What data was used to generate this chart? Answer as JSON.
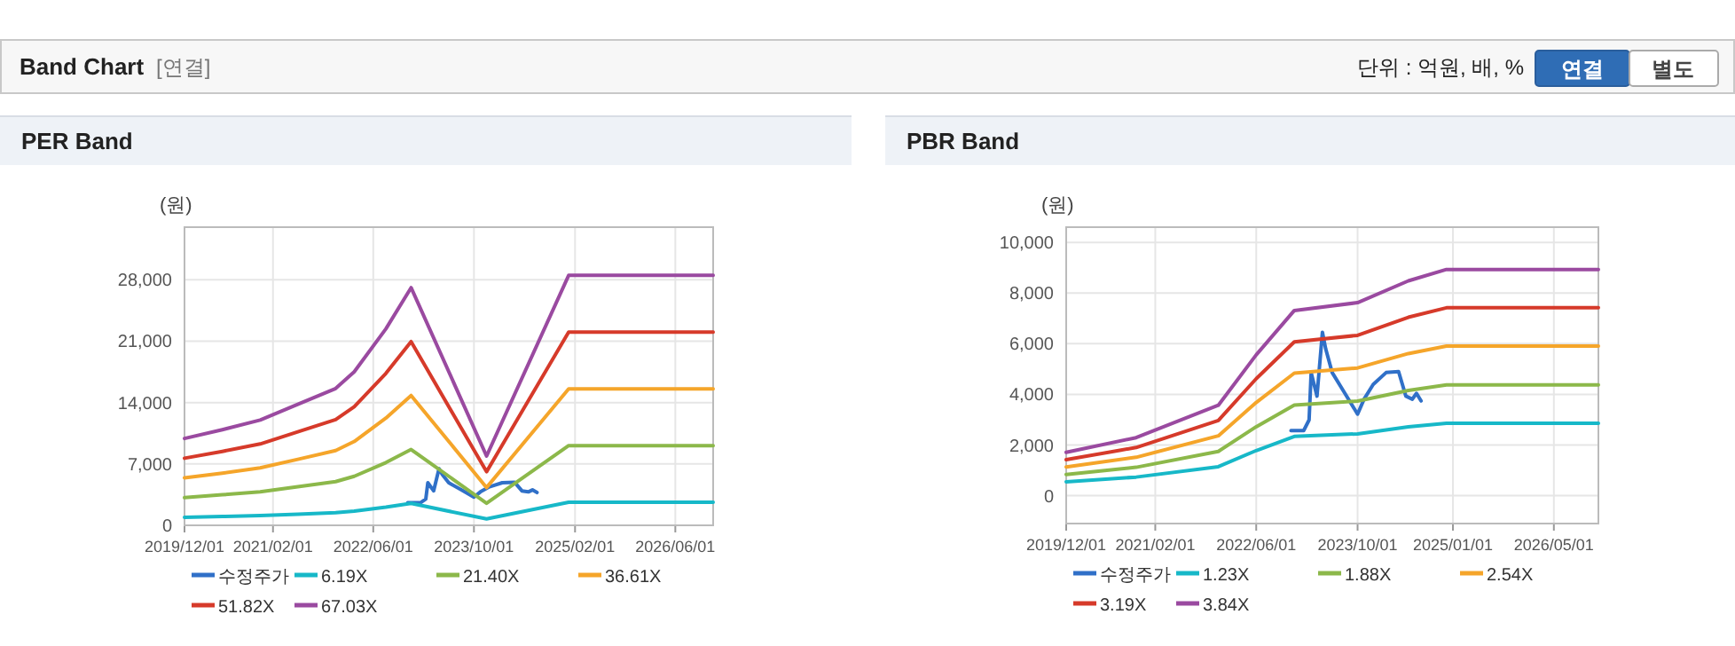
{
  "chart_data": [
    {
      "type": "other",
      "title": "Band Chart",
      "annotations": [
        "[연결]",
        "단위 : 억원, 배, %",
        "연결",
        "별도"
      ]
    },
    {
      "type": "line",
      "title": "PER Band",
      "ylabel": "(원)",
      "xlim": [
        "2019-12-01",
        "2026-12-01"
      ],
      "xticks": [
        {
          "value": "2019-12-01",
          "label": "2019/12/01"
        },
        {
          "value": "2021-02-01",
          "label": "2021/02/01"
        },
        {
          "value": "2022-06-01",
          "label": "2022/06/01"
        },
        {
          "value": "2023-10-01",
          "label": "2023/10/01"
        },
        {
          "value": "2025-02-01",
          "label": "2025/02/01"
        },
        {
          "value": "2026-06-01",
          "label": "2026/06/01"
        }
      ],
      "ylim": [
        0,
        34000
      ],
      "yticks": [
        0,
        {
          "value": 7000,
          "label": "7,000"
        },
        {
          "value": 14000,
          "label": "14,000"
        },
        {
          "value": 21000,
          "label": "21,000"
        },
        {
          "value": 28000,
          "label": "28,000"
        }
      ],
      "grid": true,
      "legend": "bottom",
      "marker": "none",
      "line_style": "solid",
      "series": [
        {
          "name": "수정주가",
          "color": "#3070c8",
          "x": [
            "2022-11-15",
            "2023-01-15",
            "2023-02-10",
            "2023-02-20",
            "2023-03-20",
            "2023-04-15",
            "2023-05-01",
            "2023-06-01",
            "2023-08-01",
            "2023-10-01",
            "2023-11-01",
            "2023-12-15",
            "2024-02-15",
            "2024-04-15",
            "2024-05-20",
            "2024-06-20",
            "2024-07-10",
            "2024-08-01"
          ],
          "values": [
            2570,
            2570,
            2990,
            4860,
            3930,
            6450,
            5790,
            4860,
            4040,
            3220,
            3810,
            4390,
            4860,
            4900,
            3930,
            3810,
            4040,
            3740
          ]
        },
        {
          "name": "6.19X",
          "color": "#17b8c8",
          "x": [
            "2019-12-01",
            "2020-06-01",
            "2020-12-01",
            "2021-06-01",
            "2021-12-01",
            "2022-03-01",
            "2022-08-01",
            "2022-12-01",
            "2023-12-01",
            "2025-01-01",
            "2026-12-01"
          ],
          "values": [
            914,
            1006,
            1108,
            1274,
            1440,
            1615,
            2068,
            2501,
            729,
            2631,
            2631
          ]
        },
        {
          "name": "21.40X",
          "color": "#8cb84a",
          "x": [
            "2019-12-01",
            "2020-06-01",
            "2020-12-01",
            "2021-06-01",
            "2021-12-01",
            "2022-03-01",
            "2022-08-01",
            "2022-12-01",
            "2023-12-01",
            "2025-01-01",
            "2026-12-01"
          ],
          "values": [
            3160,
            3480,
            3830,
            4400,
            4980,
            5590,
            7150,
            8650,
            2520,
            9090,
            9090
          ]
        },
        {
          "name": "36.61X",
          "color": "#f5a52a",
          "x": [
            "2019-12-01",
            "2020-06-01",
            "2020-12-01",
            "2021-06-01",
            "2021-12-01",
            "2022-03-01",
            "2022-08-01",
            "2022-12-01",
            "2023-12-01",
            "2025-01-01",
            "2026-12-01"
          ],
          "values": [
            5410,
            5950,
            6550,
            7530,
            8520,
            9560,
            12230,
            14800,
            4310,
            15560,
            15560
          ]
        },
        {
          "name": "51.82X",
          "color": "#d63a2a",
          "x": [
            "2019-12-01",
            "2020-06-01",
            "2020-12-01",
            "2021-06-01",
            "2021-12-01",
            "2022-03-01",
            "2022-08-01",
            "2022-12-01",
            "2023-12-01",
            "2025-01-01",
            "2026-12-01"
          ],
          "values": [
            7650,
            8430,
            9280,
            10670,
            12060,
            13530,
            17320,
            20950,
            6110,
            22030,
            22030
          ]
        },
        {
          "name": "67.03X",
          "color": "#9a4aa0",
          "x": [
            "2019-12-01",
            "2020-06-01",
            "2020-12-01",
            "2021-06-01",
            "2021-12-01",
            "2022-03-01",
            "2022-08-01",
            "2022-12-01",
            "2023-12-01",
            "2025-01-01",
            "2026-12-01"
          ],
          "values": [
            9900,
            10900,
            12000,
            13800,
            15600,
            17500,
            22400,
            27100,
            7900,
            28500,
            28500
          ]
        }
      ]
    },
    {
      "type": "line",
      "title": "PBR Band",
      "ylabel": "(원)",
      "xlim": [
        "2019-12-01",
        "2026-12-01"
      ],
      "xticks": [
        {
          "value": "2019-12-01",
          "label": "2019/12/01"
        },
        {
          "value": "2021-02-01",
          "label": "2021/02/01"
        },
        {
          "value": "2022-06-01",
          "label": "2022/06/01"
        },
        {
          "value": "2023-10-01",
          "label": "2023/10/01"
        },
        {
          "value": "2025-01-01",
          "label": "2025/01/01"
        },
        {
          "value": "2026-05-01",
          "label": "2026/05/01"
        }
      ],
      "ylim": [
        -1100,
        10600
      ],
      "yticks": [
        0,
        {
          "value": 2000,
          "label": "2,000"
        },
        {
          "value": 4000,
          "label": "4,000"
        },
        {
          "value": 6000,
          "label": "6,000"
        },
        {
          "value": 8000,
          "label": "8,000"
        },
        {
          "value": 10000,
          "label": "10,000"
        }
      ],
      "grid": true,
      "legend": "bottom",
      "marker": "none",
      "line_style": "solid",
      "series": [
        {
          "name": "수정주가",
          "color": "#3070c8",
          "x": [
            "2022-11-15",
            "2023-01-15",
            "2023-02-10",
            "2023-02-20",
            "2023-03-20",
            "2023-04-15",
            "2023-05-01",
            "2023-06-01",
            "2023-08-01",
            "2023-10-01",
            "2023-11-01",
            "2023-12-15",
            "2024-02-15",
            "2024-04-15",
            "2024-05-20",
            "2024-06-20",
            "2024-07-10",
            "2024-08-01"
          ],
          "values": [
            2570,
            2570,
            2990,
            4860,
            3930,
            6450,
            5790,
            4860,
            4040,
            3220,
            3810,
            4390,
            4860,
            4900,
            3930,
            3810,
            4040,
            3740
          ]
        },
        {
          "name": "1.23X",
          "color": "#17b8c8",
          "x": [
            "2019-12-01",
            "2020-11-01",
            "2021-12-01",
            "2022-06-01",
            "2022-12-01",
            "2023-10-01",
            "2024-06-01",
            "2024-12-01",
            "2026-12-01"
          ],
          "values": [
            548,
            734,
            1143,
            1781,
            2341,
            2441,
            2716,
            2860,
            2860
          ]
        },
        {
          "name": "1.88X",
          "color": "#8cb84a",
          "x": [
            "2019-12-01",
            "2020-11-01",
            "2021-12-01",
            "2022-06-01",
            "2022-12-01",
            "2023-10-01",
            "2024-06-01",
            "2024-12-01",
            "2026-12-01"
          ],
          "values": [
            837,
            1121,
            1748,
            2722,
            3579,
            3731,
            4152,
            4372,
            4372
          ]
        },
        {
          "name": "2.54X",
          "color": "#f5a52a",
          "x": [
            "2019-12-01",
            "2020-11-01",
            "2021-12-01",
            "2022-06-01",
            "2022-12-01",
            "2023-10-01",
            "2024-06-01",
            "2024-12-01",
            "2026-12-01"
          ],
          "values": [
            1131,
            1515,
            2362,
            3678,
            4836,
            5041,
            5610,
            5907,
            5907
          ]
        },
        {
          "name": "3.19X",
          "color": "#d63a2a",
          "x": [
            "2019-12-01",
            "2020-11-01",
            "2021-12-01",
            "2022-06-01",
            "2022-12-01",
            "2023-10-01",
            "2024-06-01",
            "2024-12-01",
            "2026-12-01"
          ],
          "values": [
            1420,
            1902,
            2966,
            4619,
            6072,
            6330,
            7044,
            7418,
            7418
          ]
        },
        {
          "name": "3.84X",
          "color": "#9a4aa0",
          "x": [
            "2019-12-01",
            "2020-11-01",
            "2021-12-01",
            "2022-06-01",
            "2022-12-01",
            "2023-10-01",
            "2024-06-01",
            "2024-12-01",
            "2026-12-01"
          ],
          "values": [
            1710,
            2290,
            3570,
            5560,
            7310,
            7620,
            8480,
            8930,
            8930
          ]
        }
      ]
    }
  ]
}
